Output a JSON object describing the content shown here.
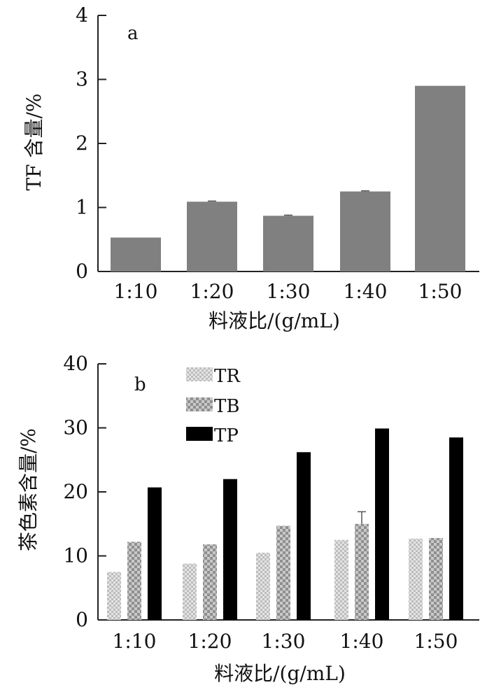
{
  "chart_data": [
    {
      "type": "bar",
      "panel_label": "a",
      "categories": [
        "1:10",
        "1:20",
        "1:30",
        "1:40",
        "1:50"
      ],
      "values": [
        0.53,
        1.09,
        0.87,
        1.25,
        2.9
      ],
      "error": [
        0,
        0.01,
        0.01,
        0.01,
        0
      ],
      "ylabel": "TF 含量/%",
      "xlabel": "料液比/(g/mL)",
      "ylim": [
        0,
        4
      ],
      "yticks": [
        "0",
        "1",
        "2",
        "3",
        "4"
      ],
      "grid": false,
      "colors": {
        "bar": "#808080"
      }
    },
    {
      "type": "bar",
      "panel_label": "b",
      "categories": [
        "1:10",
        "1:20",
        "1:30",
        "1:40",
        "1:50"
      ],
      "series": [
        {
          "name": "TR",
          "values": [
            7.5,
            8.8,
            10.5,
            12.5,
            12.7
          ],
          "error": [
            0,
            0,
            0,
            0,
            0
          ]
        },
        {
          "name": "TB",
          "values": [
            12.2,
            11.8,
            14.7,
            15.0,
            12.8
          ],
          "error": [
            0,
            0,
            0,
            1.9,
            0
          ]
        },
        {
          "name": "TP",
          "values": [
            20.7,
            22.0,
            26.2,
            29.9,
            28.5
          ],
          "error": [
            0,
            0,
            0,
            0,
            0
          ]
        }
      ],
      "ylabel": "茶色素含量/%",
      "xlabel": "料液比/(g/mL)",
      "ylim": [
        0,
        40
      ],
      "yticks": [
        "0",
        "10",
        "20",
        "30",
        "40"
      ],
      "legend": "top-left",
      "grid": false,
      "colors": {
        "TR": "#cfcfcf",
        "TB": "#aaaaaa",
        "TP": "#000000"
      }
    }
  ]
}
